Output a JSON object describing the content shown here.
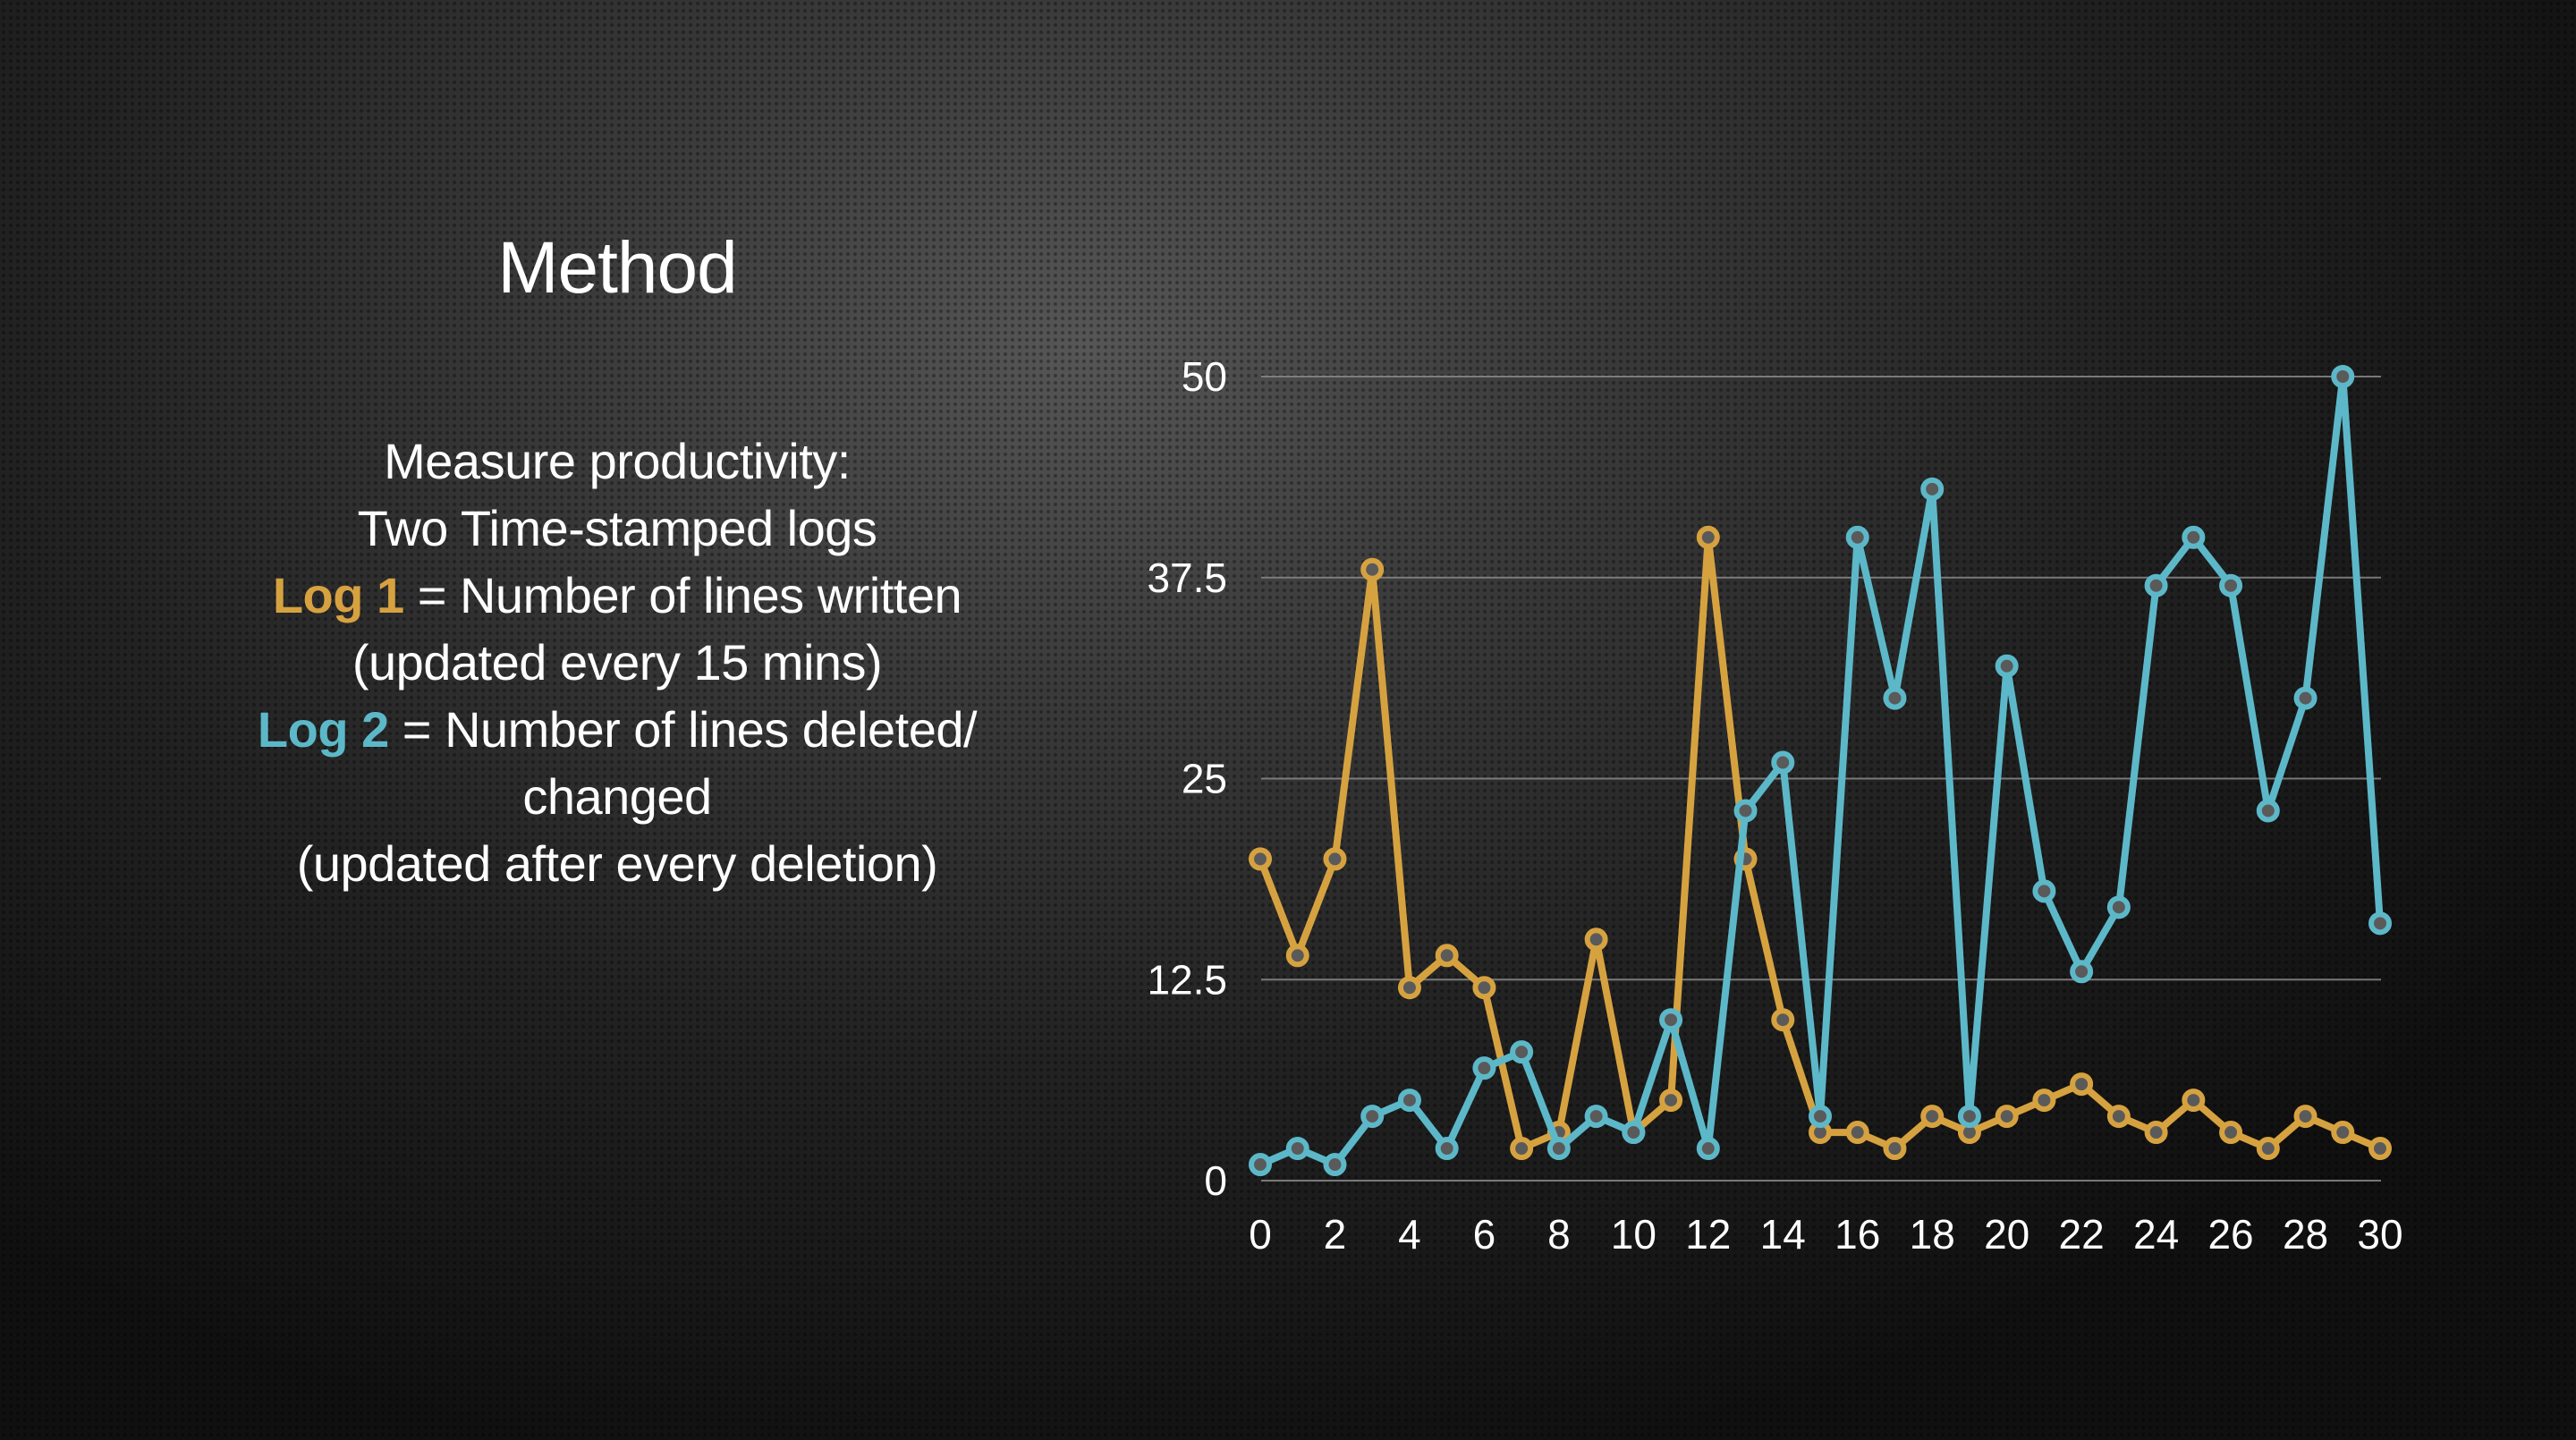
{
  "slide": {
    "title": "Method",
    "description": {
      "line1": "Measure productivity:",
      "line2": "Two Time-stamped logs",
      "log1_label": "Log 1",
      "log1_text": " = Number of lines written",
      "log1_note": "(updated every 15 mins)",
      "log2_label": "Log 2",
      "log2_text": " = Number of lines deleted/",
      "log2_text_cont": "changed",
      "log2_note": "(updated after every deletion)"
    }
  },
  "colors": {
    "log1": "#d6a240",
    "log2": "#5cb8c8",
    "gridline": "#8a8a8a",
    "marker_fill": "#5a5a5a"
  },
  "chart_data": {
    "type": "line",
    "title": "",
    "xlabel": "",
    "ylabel": "",
    "x": [
      0,
      1,
      2,
      3,
      4,
      5,
      6,
      7,
      8,
      9,
      10,
      11,
      12,
      13,
      14,
      15,
      16,
      17,
      18,
      19,
      20,
      21,
      22,
      23,
      24,
      25,
      26,
      27,
      28,
      29,
      30
    ],
    "x_ticks": [
      0,
      2,
      4,
      6,
      8,
      10,
      12,
      14,
      16,
      18,
      20,
      22,
      24,
      26,
      28,
      30
    ],
    "y_ticks": [
      0,
      12.5,
      25,
      37.5,
      50
    ],
    "y_tick_labels": [
      "0",
      "12.5",
      "25",
      "37.5",
      "50"
    ],
    "xlim": [
      0,
      30
    ],
    "ylim": [
      0,
      50
    ],
    "grid": true,
    "legend": "none",
    "series": [
      {
        "key": "log1",
        "values": [
          20,
          14,
          20,
          38,
          12,
          14,
          12,
          2,
          3,
          15,
          3,
          5,
          40,
          20,
          10,
          3,
          3,
          2,
          4,
          3,
          4,
          5,
          6,
          4,
          3,
          5,
          3,
          2,
          4,
          3,
          2
        ]
      },
      {
        "key": "log2",
        "values": [
          1,
          2,
          1,
          4,
          5,
          2,
          7,
          8,
          2,
          4,
          3,
          10,
          2,
          23,
          26,
          4,
          40,
          30,
          43,
          4,
          32,
          18,
          13,
          17,
          37,
          40,
          37,
          23,
          30,
          50,
          16
        ]
      }
    ]
  }
}
